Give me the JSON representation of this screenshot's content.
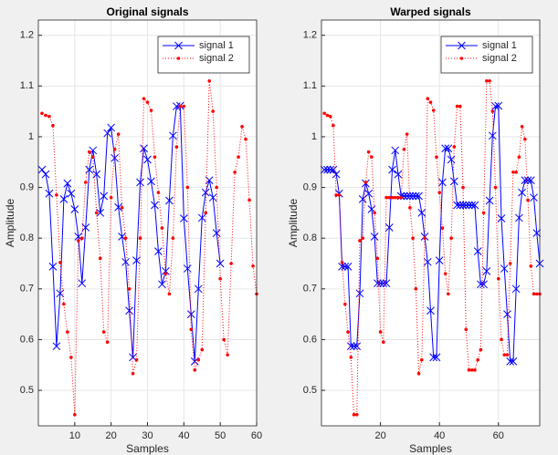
{
  "chart_data": [
    {
      "type": "line",
      "title": "Original signals",
      "xlabel": "Samples",
      "ylabel": "Amplitude",
      "xlim": [
        0,
        60
      ],
      "ylim": [
        0.43,
        1.23
      ],
      "xticks": [
        10,
        20,
        30,
        40,
        50,
        60
      ],
      "yticks": [
        0.5,
        0.6,
        0.7,
        0.8,
        0.9,
        1,
        1.1,
        1.2
      ],
      "grid": true,
      "legend": "northeast",
      "series": [
        {
          "name": "signal 1",
          "color": "#0000ff",
          "marker": "x",
          "line_style": "solid",
          "x": [
            1,
            2,
            3,
            4,
            5,
            6,
            7,
            8,
            9,
            10,
            11,
            12,
            13,
            14,
            15,
            16,
            17,
            18,
            19,
            20,
            21,
            22,
            23,
            24,
            25,
            26,
            27,
            28,
            29,
            30,
            31,
            32,
            33,
            34,
            35,
            36,
            37,
            38,
            39,
            40,
            41,
            42,
            43,
            44,
            45,
            46,
            47,
            48,
            49,
            50
          ],
          "values": [
            0.935,
            0.926,
            0.888,
            0.744,
            0.587,
            0.691,
            0.877,
            0.908,
            0.888,
            0.857,
            0.803,
            0.711,
            0.821,
            0.935,
            0.973,
            0.926,
            0.85,
            0.883,
            1.007,
            1.018,
            0.958,
            0.861,
            0.803,
            0.753,
            0.657,
            0.565,
            0.756,
            0.91,
            0.977,
            0.955,
            0.912,
            0.865,
            0.774,
            0.709,
            0.735,
            0.874,
            1.002,
            1.06,
            1.061,
            0.839,
            0.74,
            0.65,
            0.557,
            0.7,
            0.84,
            0.89,
            0.914,
            0.88,
            0.81,
            0.75
          ]
        },
        {
          "name": "signal 2",
          "color": "#ff0000",
          "marker": ".",
          "line_style": "dotted",
          "x": [
            1,
            2,
            3,
            4,
            5,
            6,
            7,
            8,
            9,
            10,
            11,
            12,
            13,
            14,
            15,
            16,
            17,
            18,
            19,
            20,
            21,
            22,
            23,
            24,
            25,
            26,
            27,
            28,
            29,
            30,
            31,
            32,
            33,
            34,
            35,
            36,
            37,
            38,
            39,
            40,
            41,
            42,
            43,
            44,
            45,
            46,
            47,
            48,
            49,
            50,
            51,
            52,
            53,
            54,
            55,
            56,
            57,
            58,
            59,
            60
          ],
          "values": [
            1.046,
            1.042,
            1.04,
            1.022,
            0.885,
            0.752,
            0.67,
            0.615,
            0.565,
            0.452,
            0.795,
            0.8,
            0.91,
            0.97,
            0.96,
            0.85,
            0.76,
            0.615,
            0.595,
            0.88,
            0.975,
            1.005,
            0.86,
            0.8,
            0.7,
            0.533,
            0.56,
            0.8,
            1.075,
            1.068,
            1.052,
            0.96,
            0.89,
            0.82,
            0.73,
            0.69,
            0.8,
            0.98,
            1.06,
            1.06,
            0.9,
            0.62,
            0.54,
            0.56,
            0.58,
            0.85,
            1.11,
            1.05,
            0.9,
            0.72,
            0.6,
            0.57,
            0.75,
            0.93,
            0.96,
            1.02,
            0.995,
            0.875,
            0.745,
            0.69
          ]
        }
      ]
    },
    {
      "type": "line",
      "title": "Warped signals",
      "xlabel": "Samples",
      "ylabel": "Amplitude",
      "xlim": [
        0,
        74
      ],
      "ylim": [
        0.43,
        1.23
      ],
      "xticks": [
        20,
        40,
        60
      ],
      "yticks": [
        0.5,
        0.6,
        0.7,
        0.8,
        0.9,
        1,
        1.1,
        1.2
      ],
      "grid": true,
      "legend": "northeast",
      "series": [
        {
          "name": "signal 1",
          "color": "#0000ff",
          "marker": "x",
          "line_style": "solid",
          "x": [
            1,
            2,
            3,
            4,
            5,
            6,
            7,
            8,
            9,
            10,
            11,
            12,
            13,
            14,
            15,
            16,
            17,
            18,
            19,
            20,
            21,
            22,
            23,
            24,
            25,
            26,
            27,
            28,
            29,
            30,
            31,
            32,
            33,
            34,
            35,
            36,
            37,
            38,
            39,
            40,
            41,
            42,
            43,
            44,
            45,
            46,
            47,
            48,
            49,
            50,
            51,
            52,
            53,
            54,
            55,
            56,
            57,
            58,
            59,
            60,
            61,
            62,
            63,
            64,
            65,
            66,
            67,
            68,
            69,
            70,
            71,
            72,
            73,
            74
          ],
          "values": [
            0.935,
            0.935,
            0.935,
            0.935,
            0.926,
            0.888,
            0.744,
            0.744,
            0.744,
            0.587,
            0.587,
            0.587,
            0.691,
            0.877,
            0.908,
            0.888,
            0.857,
            0.803,
            0.711,
            0.711,
            0.711,
            0.711,
            0.821,
            0.935,
            0.973,
            0.926,
            0.883,
            0.883,
            0.883,
            0.883,
            0.883,
            0.883,
            0.883,
            0.85,
            0.803,
            0.753,
            0.657,
            0.565,
            0.565,
            0.756,
            0.91,
            0.977,
            0.977,
            0.955,
            0.912,
            0.865,
            0.865,
            0.865,
            0.865,
            0.865,
            0.865,
            0.865,
            0.774,
            0.709,
            0.709,
            0.735,
            0.874,
            1.002,
            1.06,
            1.061,
            0.839,
            0.74,
            0.65,
            0.557,
            0.557,
            0.7,
            0.84,
            0.89,
            0.914,
            0.914,
            0.914,
            0.88,
            0.81,
            0.75
          ]
        },
        {
          "name": "signal 2",
          "color": "#ff0000",
          "marker": ".",
          "line_style": "dotted",
          "x": [
            1,
            2,
            3,
            4,
            5,
            6,
            7,
            8,
            9,
            10,
            11,
            12,
            13,
            14,
            15,
            16,
            17,
            18,
            19,
            20,
            21,
            22,
            23,
            24,
            25,
            26,
            27,
            28,
            29,
            30,
            31,
            32,
            33,
            34,
            35,
            36,
            37,
            38,
            39,
            40,
            41,
            42,
            43,
            44,
            45,
            46,
            47,
            48,
            49,
            50,
            51,
            52,
            53,
            54,
            55,
            56,
            57,
            58,
            59,
            60,
            61,
            62,
            63,
            64,
            65,
            66,
            67,
            68,
            69,
            70,
            71,
            72,
            73,
            74
          ],
          "values": [
            1.046,
            1.042,
            1.04,
            1.022,
            0.885,
            0.885,
            0.752,
            0.67,
            0.615,
            0.565,
            0.452,
            0.452,
            0.795,
            0.8,
            0.91,
            0.97,
            0.96,
            0.85,
            0.76,
            0.615,
            0.595,
            0.88,
            0.88,
            0.88,
            0.88,
            0.88,
            0.88,
            0.975,
            1.005,
            0.86,
            0.8,
            0.7,
            0.533,
            0.56,
            0.8,
            1.075,
            1.068,
            1.052,
            0.96,
            0.89,
            0.82,
            0.73,
            0.69,
            0.8,
            0.98,
            1.06,
            1.06,
            0.9,
            0.62,
            0.54,
            0.54,
            0.54,
            0.56,
            0.58,
            0.85,
            1.11,
            1.11,
            1.05,
            0.9,
            0.72,
            0.6,
            0.57,
            0.57,
            0.75,
            0.93,
            0.93,
            0.96,
            1.02,
            0.995,
            0.875,
            0.745,
            0.69,
            0.69,
            0.69
          ]
        }
      ]
    }
  ]
}
